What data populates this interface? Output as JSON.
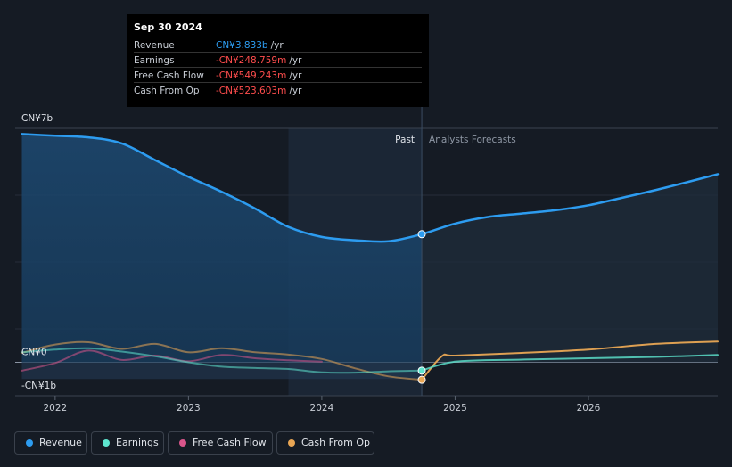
{
  "tooltip": {
    "date": "Sep 30 2024",
    "rows": [
      {
        "label": "Revenue",
        "value": "CN¥3.833b",
        "unit": "/yr",
        "color": "#2d9cf0"
      },
      {
        "label": "Earnings",
        "value": "-CN¥248.759m",
        "unit": "/yr",
        "color": "#ff4d4d"
      },
      {
        "label": "Free Cash Flow",
        "value": "-CN¥549.243m",
        "unit": "/yr",
        "color": "#ff4d4d"
      },
      {
        "label": "Cash From Op",
        "value": "-CN¥523.603m",
        "unit": "/yr",
        "color": "#ff4d4d"
      }
    ]
  },
  "chart_data": {
    "type": "line",
    "y_tick_labels": [
      "CN¥7b",
      "CN¥0",
      "-CN¥1b"
    ],
    "ylim": [
      -1,
      7
    ],
    "x_tick_labels": [
      "2022",
      "2023",
      "2024",
      "2025",
      "2026"
    ],
    "xlim": [
      2021.7,
      2026.97
    ],
    "past_label": "Past",
    "forecast_label": "Analysts Forecasts",
    "divider_x": 2024.75,
    "highlight_start": 2023.75,
    "grid": true,
    "legend_position": "bottom",
    "series": [
      {
        "name": "Revenue",
        "color": "#2d9cf0",
        "marker": 3.833,
        "points": [
          [
            2021.75,
            6.83
          ],
          [
            2022.0,
            6.78
          ],
          [
            2022.25,
            6.73
          ],
          [
            2022.5,
            6.55
          ],
          [
            2022.75,
            6.05
          ],
          [
            2023.0,
            5.55
          ],
          [
            2023.25,
            5.1
          ],
          [
            2023.5,
            4.6
          ],
          [
            2023.75,
            4.05
          ],
          [
            2024.0,
            3.75
          ],
          [
            2024.25,
            3.65
          ],
          [
            2024.5,
            3.62
          ],
          [
            2024.75,
            3.833
          ],
          [
            2025.0,
            4.15
          ],
          [
            2025.25,
            4.35
          ],
          [
            2025.5,
            4.45
          ],
          [
            2025.75,
            4.55
          ],
          [
            2026.0,
            4.7
          ],
          [
            2026.25,
            4.92
          ],
          [
            2026.5,
            5.15
          ],
          [
            2026.75,
            5.4
          ],
          [
            2026.97,
            5.63
          ]
        ]
      },
      {
        "name": "Earnings",
        "color": "#5ee6cf",
        "marker": -0.249,
        "points": [
          [
            2021.75,
            0.3
          ],
          [
            2022.0,
            0.38
          ],
          [
            2022.25,
            0.42
          ],
          [
            2022.5,
            0.32
          ],
          [
            2022.75,
            0.18
          ],
          [
            2023.0,
            0.0
          ],
          [
            2023.25,
            -0.13
          ],
          [
            2023.5,
            -0.17
          ],
          [
            2023.75,
            -0.2
          ],
          [
            2024.0,
            -0.3
          ],
          [
            2024.25,
            -0.31
          ],
          [
            2024.5,
            -0.27
          ],
          [
            2024.75,
            -0.249
          ],
          [
            2025.0,
            0.02
          ],
          [
            2025.5,
            0.08
          ],
          [
            2026.0,
            0.12
          ],
          [
            2026.5,
            0.16
          ],
          [
            2026.97,
            0.22
          ]
        ]
      },
      {
        "name": "Free Cash Flow",
        "color": "#d9558b",
        "points": [
          [
            2021.75,
            -0.25
          ],
          [
            2022.0,
            -0.02
          ],
          [
            2022.25,
            0.35
          ],
          [
            2022.5,
            0.07
          ],
          [
            2022.75,
            0.2
          ],
          [
            2023.0,
            0.03
          ],
          [
            2023.25,
            0.22
          ],
          [
            2023.5,
            0.12
          ],
          [
            2023.75,
            0.06
          ],
          [
            2024.0,
            0.02
          ]
        ]
      },
      {
        "name": "Cash From Op",
        "color": "#e9a654",
        "marker": -0.524,
        "points": [
          [
            2021.75,
            0.28
          ],
          [
            2022.0,
            0.53
          ],
          [
            2022.25,
            0.6
          ],
          [
            2022.5,
            0.4
          ],
          [
            2022.75,
            0.55
          ],
          [
            2023.0,
            0.3
          ],
          [
            2023.25,
            0.42
          ],
          [
            2023.5,
            0.3
          ],
          [
            2023.75,
            0.23
          ],
          [
            2024.0,
            0.1
          ],
          [
            2024.25,
            -0.18
          ],
          [
            2024.5,
            -0.42
          ],
          [
            2024.75,
            -0.524
          ],
          [
            2024.9,
            0.18
          ],
          [
            2025.0,
            0.2
          ],
          [
            2025.5,
            0.28
          ],
          [
            2026.0,
            0.38
          ],
          [
            2026.5,
            0.55
          ],
          [
            2026.97,
            0.62
          ]
        ]
      }
    ]
  }
}
